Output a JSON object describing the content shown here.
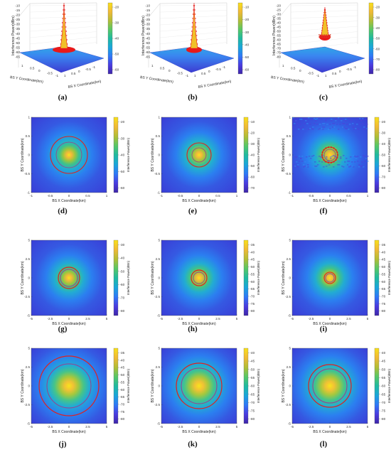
{
  "figure": {
    "colors": {
      "ring_outer": "#e02020",
      "ring_inner": "#9b3d8f",
      "background_low": "#3a3cd6",
      "center_high": "#f4e21c"
    },
    "colorbar_stops": [
      "#3e26a8",
      "#4a3be0",
      "#2e78f7",
      "#1aa6da",
      "#1fbaa0",
      "#58c765",
      "#b3bd35",
      "#f0b936",
      "#f8e01a"
    ]
  },
  "chart_data": [
    {
      "label": "(a)",
      "type": "surface3d",
      "xlabel": "BS X Coordinate(km)",
      "ylabel": "BS Y Coordinate(km)",
      "zlabel": "Interference Power(dBm)",
      "z_ticks": [
        "-10",
        "-15",
        "-20",
        "-25",
        "-30",
        "-35",
        "-40",
        "-45",
        "-50",
        "-55",
        "-60",
        "-65"
      ],
      "x_ticks": [
        "1",
        "0.5",
        "0",
        "-0.5",
        "-1"
      ],
      "y_ticks": [
        "1",
        "0.5",
        "0",
        "-0.5",
        "-1"
      ],
      "colorbar_ticks": [
        "-20",
        "-30",
        "-40",
        "-50",
        "-60"
      ]
    },
    {
      "label": "(b)",
      "type": "surface3d",
      "xlabel": "BS X Coordinate(km)",
      "ylabel": "BS Y Coordinate(km)",
      "zlabel": "Interference Power(dBm)",
      "z_ticks": [
        "-10",
        "-15",
        "-20",
        "-25",
        "-30",
        "-35",
        "-40",
        "-45",
        "-50",
        "-55",
        "-60",
        "-65"
      ],
      "x_ticks": [
        "1",
        "0.5",
        "0",
        "-0.5",
        "-1"
      ],
      "y_ticks": [
        "1",
        "0.5",
        "0",
        "-0.5",
        "-1"
      ],
      "colorbar_ticks": [
        "-10",
        "-20",
        "-30",
        "-40",
        "-50",
        "-60"
      ]
    },
    {
      "label": "(c)",
      "type": "surface3d",
      "xlabel": "BS X Coordinate(km)",
      "ylabel": "BS Y Coordinate(km)",
      "zlabel": "Interference Power(dBm)",
      "z_ticks": [
        "-20",
        "-25",
        "-30",
        "-35",
        "-40",
        "-45",
        "-50",
        "-55",
        "-60",
        "-65",
        "-70",
        "-75",
        "-80"
      ],
      "x_ticks": [
        "1",
        "0.5",
        "0",
        "-0.5",
        "-1"
      ],
      "y_ticks": [
        "1",
        "0.5",
        "0",
        "-0.5",
        "-1"
      ],
      "colorbar_ticks": [
        "-20",
        "-30",
        "-40",
        "-50",
        "-60",
        "-70",
        "-80"
      ]
    },
    {
      "label": "(d)",
      "type": "heatmap",
      "xlabel": "BS X Coordinate(km)",
      "ylabel": "BS Y Coordinate(km)",
      "zlabel": "Interference Power(dBm)",
      "x_ticks": [
        "-1",
        "-0.5",
        "0",
        "0.5",
        "1"
      ],
      "y_ticks": [
        "1",
        "0.5",
        "0",
        "-0.5",
        "-1"
      ],
      "colorbar_ticks": [
        "-20",
        "-30",
        "-40",
        "-50",
        "-60"
      ],
      "range_km": 1
    },
    {
      "label": "(e)",
      "type": "heatmap",
      "xlabel": "BS X Coordinate(km)",
      "ylabel": "BS Y Coordinate(km)",
      "zlabel": "Interference Power(dBm)",
      "x_ticks": [
        "-1",
        "-0.5",
        "0",
        "0.5",
        "1"
      ],
      "y_ticks": [
        "1",
        "0.5",
        "0",
        "-0.5",
        "-1"
      ],
      "colorbar_ticks": [
        "-10",
        "-20",
        "-30",
        "-40",
        "-50",
        "-60",
        "-70"
      ],
      "range_km": 1
    },
    {
      "label": "(f)",
      "type": "heatmap",
      "xlabel": "BS X Coordinate(km)",
      "ylabel": "BS Y Coordinate(km)",
      "zlabel": "Interference Power(dBm)",
      "x_ticks": [
        "-1",
        "-0.5",
        "0",
        "0.5",
        "1"
      ],
      "y_ticks": [
        "1",
        "0.5",
        "0",
        "-0.5",
        "-1"
      ],
      "colorbar_ticks": [
        "-20",
        "-30",
        "-40",
        "-50",
        "-60",
        "-70",
        "-80"
      ],
      "range_km": 1
    },
    {
      "label": "(g)",
      "type": "heatmap",
      "xlabel": "BS X Coordinate(km)",
      "ylabel": "BS Y Coordinate(km)",
      "zlabel": "Interference Power(dBm)",
      "x_ticks": [
        "-5",
        "-2.5",
        "0",
        "2.5",
        "5"
      ],
      "y_ticks": [
        "5",
        "2.5",
        "0",
        "-2.5",
        "-5"
      ],
      "colorbar_ticks": [
        "-30",
        "-40",
        "-50",
        "-60",
        "-70",
        "-80"
      ],
      "range_km": 5
    },
    {
      "label": "(h)",
      "type": "heatmap",
      "xlabel": "BS X Coordinate(km)",
      "ylabel": "BS Y Coordinate(km)",
      "zlabel": "Interference Power(dBm)",
      "x_ticks": [
        "-5",
        "-2.5",
        "0",
        "2.5",
        "5"
      ],
      "y_ticks": [
        "5",
        "2.5",
        "0",
        "-2.5",
        "-5"
      ],
      "colorbar_ticks": [
        "-35",
        "-40",
        "-45",
        "-50",
        "-55",
        "-60",
        "-65",
        "-70",
        "-75",
        "-80"
      ],
      "range_km": 5
    },
    {
      "label": "(i)",
      "type": "heatmap",
      "xlabel": "BS X Coordinate(km)",
      "ylabel": "BS Y Coordinate(km)",
      "zlabel": "Interference Power(dBm)",
      "x_ticks": [
        "-5",
        "-2.5",
        "0",
        "2.5",
        "5"
      ],
      "y_ticks": [
        "5",
        "2.5",
        "0",
        "-2.5",
        "-5"
      ],
      "colorbar_ticks": [
        "-35",
        "-40",
        "-45",
        "-50",
        "-55",
        "-60",
        "-65",
        "-70",
        "-75",
        "-80"
      ],
      "range_km": 5
    },
    {
      "label": "(j)",
      "type": "heatmap",
      "xlabel": "BS X Coordinate(km)",
      "ylabel": "BS Y Coordinate(km)",
      "zlabel": "Interference Power(dBm)",
      "x_ticks": [
        "-5",
        "-2.5",
        "0",
        "2.5",
        "5"
      ],
      "y_ticks": [
        "5",
        "2.5",
        "0",
        "-2.5",
        "-5"
      ],
      "colorbar_ticks": [
        "-35",
        "-40",
        "-45",
        "-50",
        "-55",
        "-60",
        "-65",
        "-70",
        "-75",
        "-80"
      ],
      "range_km": 5
    },
    {
      "label": "(k)",
      "type": "heatmap",
      "xlabel": "BS X Coordinate(km)",
      "ylabel": "BS Y Coordinate(km)",
      "zlabel": "Interference Power(dBm)",
      "x_ticks": [
        "-5",
        "-2.5",
        "0",
        "2.5",
        "5"
      ],
      "y_ticks": [
        "5",
        "2.5",
        "0",
        "-2.5",
        "-5"
      ],
      "colorbar_ticks": [
        "-40",
        "-45",
        "-50",
        "-55",
        "-60",
        "-65",
        "-70",
        "-75",
        "-80"
      ],
      "range_km": 5
    },
    {
      "label": "(l)",
      "type": "heatmap",
      "xlabel": "BS X Coordinate(km)",
      "ylabel": "BS Y Coordinate(km)",
      "zlabel": "Interference Power(dBm)",
      "x_ticks": [
        "-5",
        "-2.5",
        "0",
        "2.5",
        "5"
      ],
      "y_ticks": [
        "5",
        "2.5",
        "0",
        "-2.5",
        "-5"
      ],
      "colorbar_ticks": [
        "-40",
        "-45",
        "-50",
        "-55",
        "-60",
        "-65",
        "-70",
        "-75",
        "-80"
      ],
      "range_km": 5
    }
  ]
}
